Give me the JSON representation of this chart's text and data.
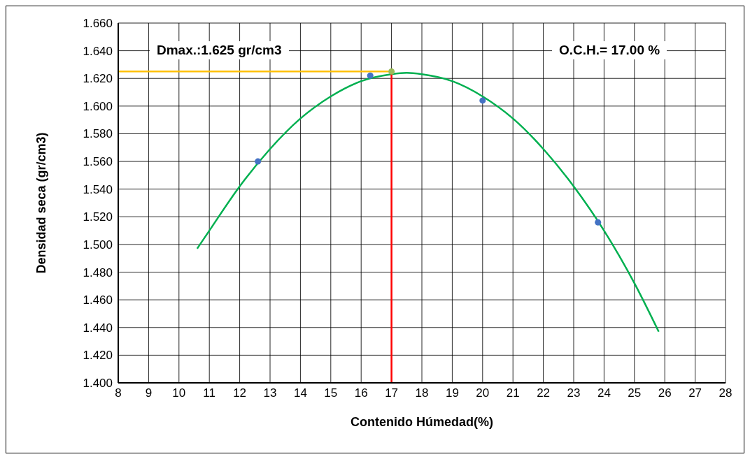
{
  "chart_data": {
    "type": "scatter",
    "xlabel": "Contenido Húmedad(%)",
    "ylabel": "Densidad seca (gr/cm3)",
    "xlim": [
      8,
      28
    ],
    "xticks": [
      8,
      9,
      10,
      11,
      12,
      13,
      14,
      15,
      16,
      17,
      18,
      19,
      20,
      21,
      22,
      23,
      24,
      25,
      26,
      27,
      28
    ],
    "ylim": [
      1.4,
      1.66
    ],
    "yticks": [
      {
        "value": 1.4,
        "label": "1.400"
      },
      {
        "value": 1.42,
        "label": "1.420"
      },
      {
        "value": 1.44,
        "label": "1.440"
      },
      {
        "value": 1.46,
        "label": "1.460"
      },
      {
        "value": 1.48,
        "label": "1.480"
      },
      {
        "value": 1.5,
        "label": "1.500"
      },
      {
        "value": 1.52,
        "label": "1.520"
      },
      {
        "value": 1.54,
        "label": "1.540"
      },
      {
        "value": 1.56,
        "label": "1.560"
      },
      {
        "value": 1.58,
        "label": "1.580"
      },
      {
        "value": 1.6,
        "label": "1.600"
      },
      {
        "value": 1.62,
        "label": "1.620"
      },
      {
        "value": 1.64,
        "label": "1.640"
      },
      {
        "value": 1.66,
        "label": "1.660"
      }
    ],
    "grid": true,
    "series": [
      {
        "type": "line",
        "color": "#00b050",
        "marker": "none",
        "line_style": "solid",
        "x": [
          10.6,
          11,
          12,
          13,
          14,
          15,
          16,
          17,
          17.5,
          18,
          19,
          20,
          21,
          22,
          23,
          24,
          25,
          25.8
        ],
        "values": [
          1.497,
          1.51,
          1.542,
          1.569,
          1.591,
          1.607,
          1.618,
          1.623,
          1.624,
          1.623,
          1.618,
          1.607,
          1.591,
          1.569,
          1.542,
          1.51,
          1.472,
          1.437
        ]
      },
      {
        "type": "line",
        "color": "#ffc000",
        "marker": "none",
        "line_style": "solid",
        "x": [
          8,
          17
        ],
        "values": [
          1.625,
          1.625
        ]
      },
      {
        "type": "line",
        "color": "#ff0000",
        "marker": "none",
        "line_style": "solid",
        "x": [
          17,
          17
        ],
        "values": [
          1.4,
          1.625
        ]
      },
      {
        "color": "#4472c4",
        "marker": "circle",
        "x": [
          12.6,
          16.3,
          20.0,
          23.8
        ],
        "values": [
          1.56,
          1.622,
          1.604,
          1.516
        ]
      },
      {
        "color": "#9bbb59",
        "marker": "circle",
        "x": [
          17
        ],
        "values": [
          1.625
        ]
      }
    ],
    "annotations": [
      "Dmax.:1.625 gr/cm3",
      "O.C.H.= 17.00 %"
    ]
  }
}
